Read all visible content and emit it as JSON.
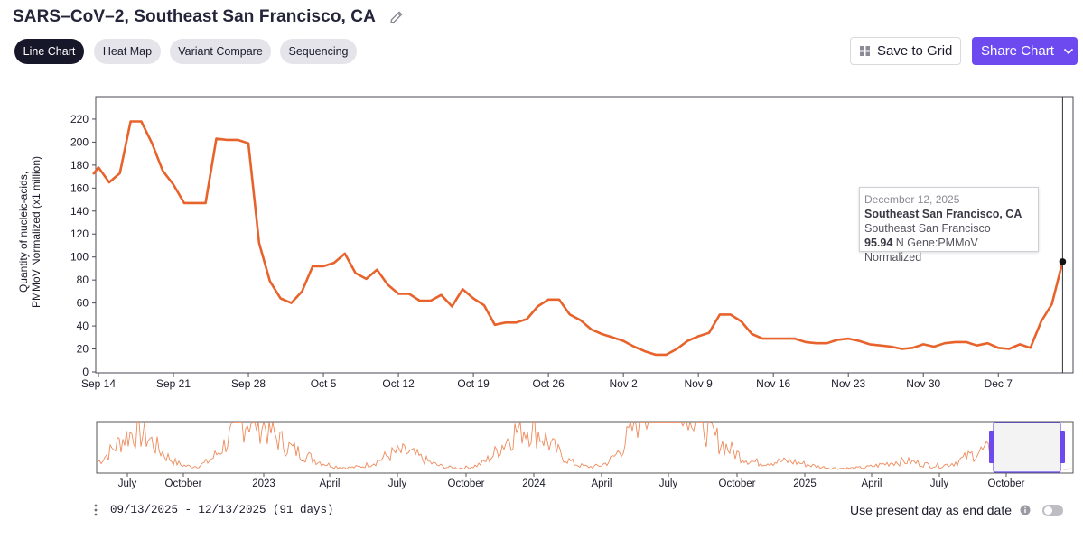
{
  "title": "SARS–CoV–2, Southeast San Francisco, CA",
  "tabs": [
    {
      "label": "Line Chart",
      "active": true
    },
    {
      "label": "Heat Map",
      "active": false
    },
    {
      "label": "Variant Compare",
      "active": false
    },
    {
      "label": "Sequencing",
      "active": false
    }
  ],
  "buttons": {
    "save_label": "Save to Grid",
    "share_label": "Share Chart"
  },
  "colors": {
    "line": "#e8632b",
    "accent": "#6c4af0",
    "dark": "#17172a"
  },
  "chart_data": {
    "type": "line",
    "ylabel_line1": "Quantity of nucleic-acids,",
    "ylabel_line2": "PMMoV Normalized (x1 million)",
    "ylim": [
      0,
      230
    ],
    "yticks": [
      0,
      20,
      40,
      60,
      80,
      100,
      120,
      140,
      160,
      180,
      200,
      220
    ],
    "x_start": "2025-09-14",
    "x_end": "2025-12-12",
    "xticks": [
      {
        "label": "Sep 14",
        "day": 0
      },
      {
        "label": "Sep 21",
        "day": 7
      },
      {
        "label": "Sep 28",
        "day": 14
      },
      {
        "label": "Oct 5",
        "day": 21
      },
      {
        "label": "Oct 12",
        "day": 28
      },
      {
        "label": "Oct 19",
        "day": 35
      },
      {
        "label": "Oct 26",
        "day": 42
      },
      {
        "label": "Nov 2",
        "day": 49
      },
      {
        "label": "Nov 9",
        "day": 56
      },
      {
        "label": "Nov 16",
        "day": 63
      },
      {
        "label": "Nov 23",
        "day": 70
      },
      {
        "label": "Nov 30",
        "day": 77
      },
      {
        "label": "Dec 7",
        "day": 84
      }
    ],
    "series": [
      {
        "name": "Southeast San Francisco, CA",
        "points": [
          [
            -0.5,
            172
          ],
          [
            0,
            178
          ],
          [
            1,
            165
          ],
          [
            2,
            173
          ],
          [
            3,
            218
          ],
          [
            4,
            218
          ],
          [
            5,
            199
          ],
          [
            6,
            175
          ],
          [
            7,
            163
          ],
          [
            8,
            147
          ],
          [
            9,
            147
          ],
          [
            10,
            147
          ],
          [
            11,
            203
          ],
          [
            12,
            202
          ],
          [
            13,
            202
          ],
          [
            14,
            199
          ],
          [
            15,
            112
          ],
          [
            16,
            79
          ],
          [
            17,
            64
          ],
          [
            18,
            60
          ],
          [
            19,
            70
          ],
          [
            20,
            92
          ],
          [
            21,
            92
          ],
          [
            22,
            95
          ],
          [
            23,
            103
          ],
          [
            24,
            86
          ],
          [
            25,
            81
          ],
          [
            26,
            89
          ],
          [
            27,
            76
          ],
          [
            28,
            68
          ],
          [
            29,
            68
          ],
          [
            30,
            62
          ],
          [
            31,
            62
          ],
          [
            32,
            67
          ],
          [
            33,
            57
          ],
          [
            34,
            72
          ],
          [
            35,
            64
          ],
          [
            36,
            58
          ],
          [
            37,
            41
          ],
          [
            38,
            43
          ],
          [
            39,
            43
          ],
          [
            40,
            46
          ],
          [
            41,
            57
          ],
          [
            42,
            63
          ],
          [
            43,
            63
          ],
          [
            44,
            50
          ],
          [
            45,
            45
          ],
          [
            46,
            37
          ],
          [
            47,
            33
          ],
          [
            48,
            30
          ],
          [
            49,
            27
          ],
          [
            50,
            22
          ],
          [
            51,
            18
          ],
          [
            52,
            15
          ],
          [
            53,
            15
          ],
          [
            54,
            20
          ],
          [
            55,
            27
          ],
          [
            56,
            31
          ],
          [
            57,
            34
          ],
          [
            58,
            50
          ],
          [
            59,
            50
          ],
          [
            60,
            44
          ],
          [
            61,
            33
          ],
          [
            62,
            29
          ],
          [
            63,
            29
          ],
          [
            64,
            29
          ],
          [
            65,
            29
          ],
          [
            66,
            26
          ],
          [
            67,
            25
          ],
          [
            68,
            25
          ],
          [
            69,
            28
          ],
          [
            70,
            29
          ],
          [
            71,
            27
          ],
          [
            72,
            24
          ],
          [
            73,
            23
          ],
          [
            74,
            22
          ],
          [
            75,
            20
          ],
          [
            76,
            21
          ],
          [
            77,
            24
          ],
          [
            78,
            22
          ],
          [
            79,
            25
          ],
          [
            80,
            26
          ],
          [
            81,
            26
          ],
          [
            82,
            23
          ],
          [
            83,
            25
          ],
          [
            84,
            21
          ],
          [
            85,
            20
          ],
          [
            86,
            24
          ],
          [
            87,
            21
          ],
          [
            88,
            44
          ],
          [
            89,
            59
          ],
          [
            90,
            95.94
          ]
        ]
      }
    ],
    "highlight": {
      "date": "December 12, 2025",
      "site": "Southeast San Francisco, CA",
      "sub": "Southeast San Francisco",
      "value": "95.94",
      "unit": "N Gene:PMMoV Normalized"
    },
    "overview": {
      "tick_labels": [
        "July",
        "October",
        "2023",
        "April",
        "July",
        "October",
        "2024",
        "April",
        "July",
        "October",
        "2025",
        "April",
        "July",
        "October"
      ]
    }
  },
  "footer": {
    "range_text": "09/13/2025 - 12/13/2025 (91 days)",
    "present_label": "Use present day as end date"
  }
}
